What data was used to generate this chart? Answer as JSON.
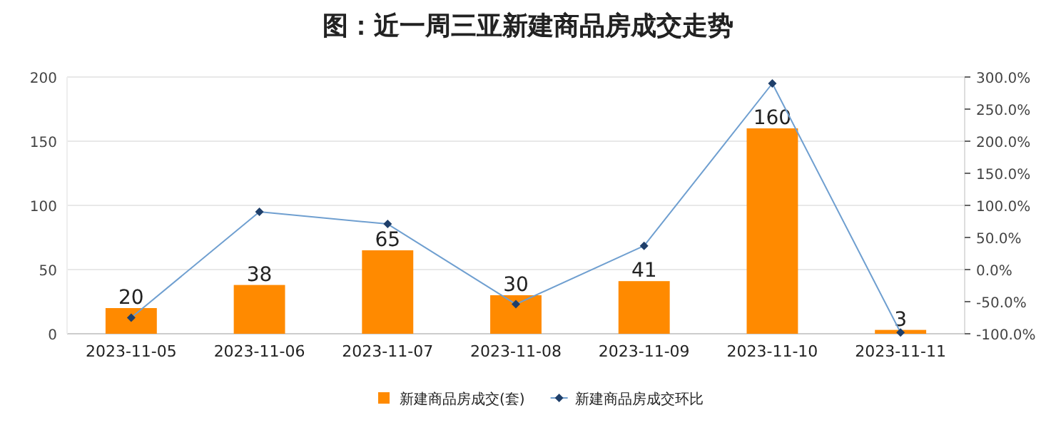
{
  "chart_data": {
    "type": "bar",
    "title": "图：近一周三亚新建商品房成交走势",
    "categories": [
      "2023-11-05",
      "2023-11-06",
      "2023-11-07",
      "2023-11-08",
      "2023-11-09",
      "2023-11-10",
      "2023-11-11"
    ],
    "series": [
      {
        "name": "新建商品房成交(套)",
        "color": "#ff8a00",
        "values": [
          20,
          38,
          65,
          30,
          41,
          160,
          3
        ],
        "value_labels": [
          "20",
          "38",
          "65",
          "30",
          "41",
          "160",
          "3"
        ]
      },
      {
        "name": "新建商品房成交环比",
        "type": "line",
        "axis": "y2",
        "color": "#6f9fd0",
        "marker": "diamond",
        "values": [
          -75,
          90,
          71,
          -54,
          37,
          290,
          -98
        ]
      }
    ],
    "ylim": [
      0,
      200
    ],
    "yticks": [
      0,
      50,
      100,
      150,
      200
    ],
    "y2lim": [
      -100,
      300
    ],
    "y2ticks": [
      {
        "value": -100,
        "label": "-100.0%"
      },
      {
        "value": -50,
        "label": "-50.0%"
      },
      {
        "value": 0,
        "label": "0.0%"
      },
      {
        "value": 50,
        "label": "50.0%"
      },
      {
        "value": 100,
        "label": "100.0%"
      },
      {
        "value": 150,
        "label": "150.0%"
      },
      {
        "value": 200,
        "label": "200.0%"
      },
      {
        "value": 250,
        "label": "250.0%"
      },
      {
        "value": 300,
        "label": "300.0%"
      }
    ],
    "grid": "y",
    "legend": "bottom"
  }
}
